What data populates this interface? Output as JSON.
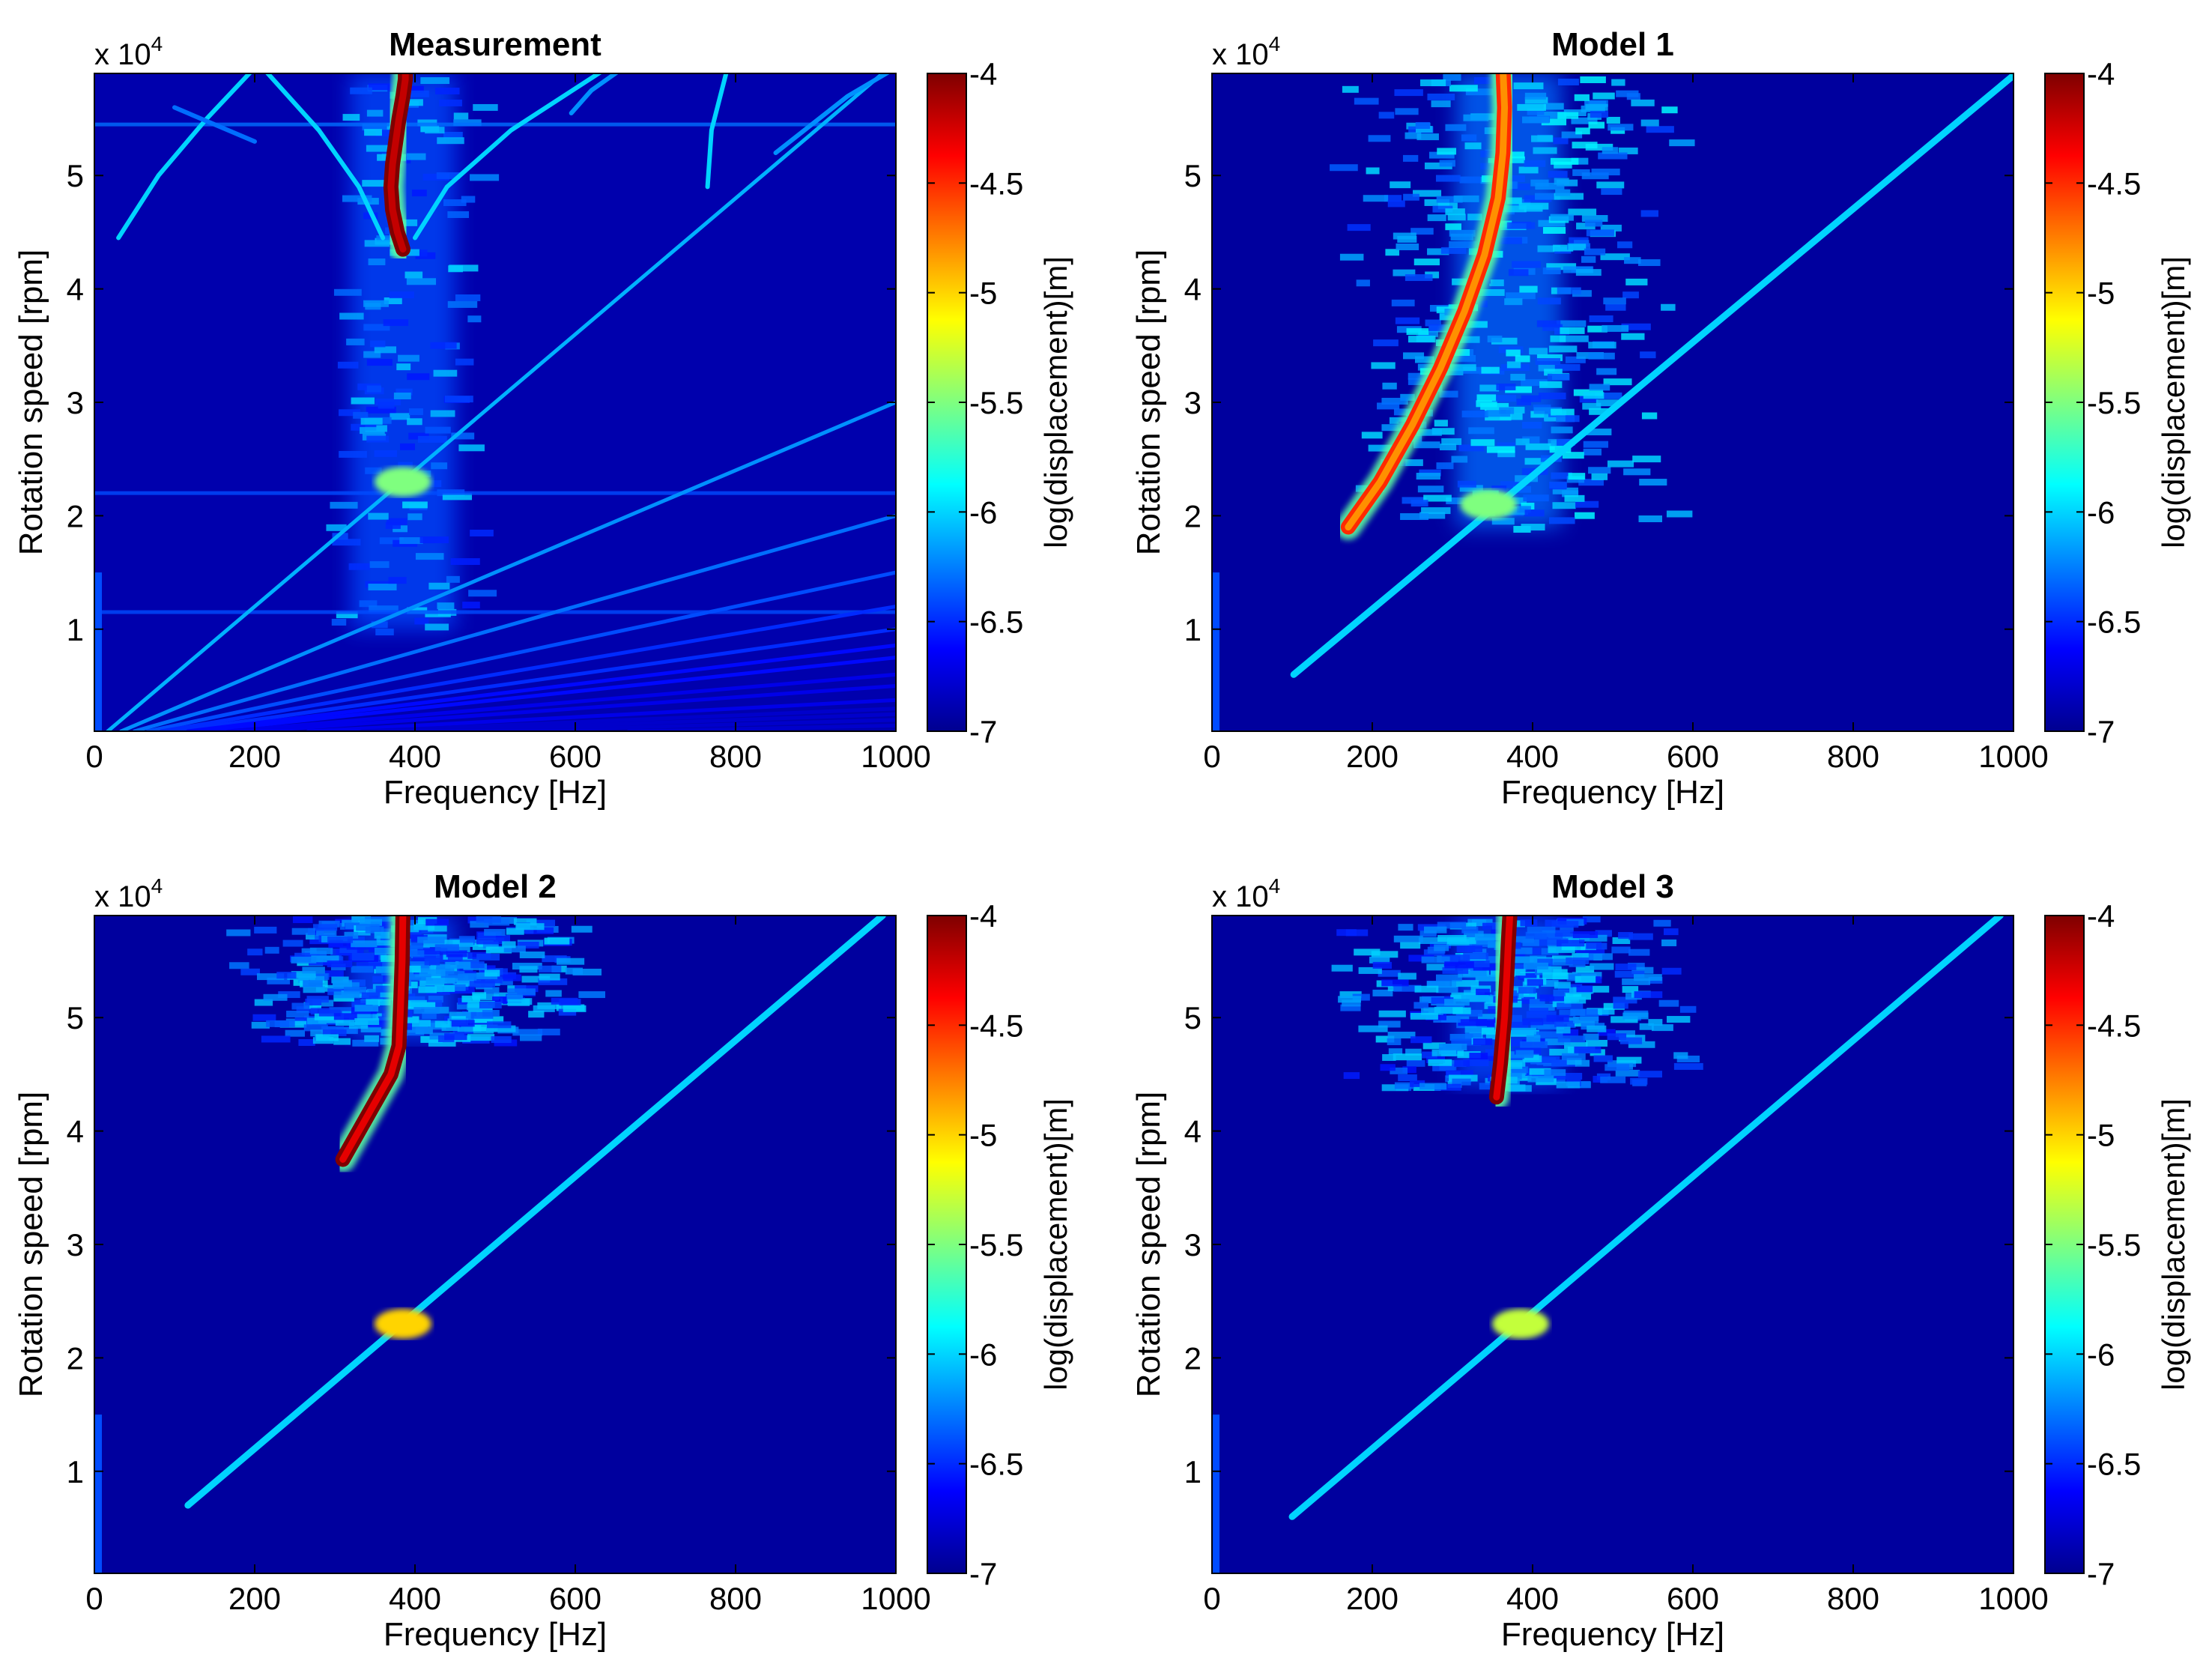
{
  "colors": {
    "background": "#ffffff",
    "plot_bg": "#00008f",
    "colormap": [
      "#00008f",
      "#0000ff",
      "#007fff",
      "#00ffff",
      "#7fff7f",
      "#ffff00",
      "#ff7f00",
      "#ff0000",
      "#7f0000"
    ]
  },
  "chart_data": [
    {
      "type": "heatmap",
      "id": "measurement",
      "title": "Measurement",
      "xlabel": "Frequency [Hz]",
      "ylabel": "Rotation speed [rpm]",
      "y_multiplier": "x 10",
      "y_multiplier_exp": "4",
      "xlim": [
        0,
        1000
      ],
      "ylim": [
        0.1,
        5.9
      ],
      "xticks": [
        0,
        200,
        400,
        600,
        800,
        1000
      ],
      "yticks": [
        1,
        2,
        3,
        4,
        5
      ],
      "colorbar": {
        "label": "log(displacement)[m]",
        "range": [
          -7,
          -4
        ],
        "ticks": [
          -4,
          -4.5,
          -5,
          -5.5,
          -6,
          -6.5,
          -7
        ]
      },
      "background_level": -6.9,
      "orders": [
        {
          "name": "1x",
          "hz_per_1e4rpm": 166.7,
          "level": -6.1
        },
        {
          "name": "2x",
          "hz_per_1e4rpm": 333.3,
          "level": -6.2
        },
        {
          "name": "3x",
          "hz_per_1e4rpm": 500,
          "level": -6.3
        },
        {
          "name": "4x",
          "hz_per_1e4rpm": 666.7,
          "level": -6.4
        },
        {
          "name": "5x",
          "hz_per_1e4rpm": 833.3,
          "level": -6.5
        },
        {
          "name": "6x",
          "hz_per_1e4rpm": 1000,
          "level": -6.5
        },
        {
          "name": "7x",
          "hz_per_1e4rpm": 1166.7,
          "level": -6.6
        },
        {
          "name": "8x",
          "hz_per_1e4rpm": 1333.3,
          "level": -6.6
        },
        {
          "name": "10x",
          "hz_per_1e4rpm": 1666.7,
          "level": -6.7
        },
        {
          "name": "12x",
          "hz_per_1e4rpm": 2000,
          "level": -6.7
        },
        {
          "name": "16x",
          "hz_per_1e4rpm": 2666.7,
          "level": -6.7
        },
        {
          "name": "20x",
          "hz_per_1e4rpm": 3333.3,
          "level": -6.8
        },
        {
          "name": "24x",
          "hz_per_1e4rpm": 4000,
          "level": -6.8
        },
        {
          "name": "30x",
          "hz_per_1e4rpm": 5000,
          "level": -6.8
        },
        {
          "name": "40x",
          "hz_per_1e4rpm": 6666.7,
          "level": -6.8
        }
      ],
      "resonance": {
        "x": [
          385,
          378,
          372,
          370,
          372,
          376,
          380,
          385,
          388,
          388
        ],
        "y": [
          4.35,
          4.5,
          4.7,
          4.9,
          5.1,
          5.3,
          5.5,
          5.7,
          5.85,
          5.95
        ],
        "level": -4.2,
        "band_center": 385,
        "band_level": -6.4
      },
      "crossing": {
        "x": 385,
        "y": 2.3,
        "level": -5.5
      },
      "branches": [
        {
          "x": [
            30,
            80,
            140,
            200
          ],
          "y": [
            4.45,
            5.0,
            5.5,
            5.95
          ],
          "level": -6.0
        },
        {
          "x": [
            360,
            330,
            280,
            210
          ],
          "y": [
            4.45,
            4.9,
            5.4,
            5.95
          ],
          "level": -6.0
        },
        {
          "x": [
            400,
            440,
            520,
            640
          ],
          "y": [
            4.45,
            4.9,
            5.4,
            5.95
          ],
          "level": -6.0
        },
        {
          "x": [
            595,
            620,
            660
          ],
          "y": [
            5.55,
            5.75,
            5.95
          ],
          "level": -6.2
        },
        {
          "x": [
            765,
            770,
            790
          ],
          "y": [
            4.9,
            5.4,
            5.95
          ],
          "level": -6.0
        },
        {
          "x": [
            850,
            940,
            1000
          ],
          "y": [
            5.2,
            5.7,
            5.95
          ],
          "level": -6.2
        },
        {
          "x": [
            100,
            200
          ],
          "y": [
            5.6,
            5.3
          ],
          "level": -6.3
        }
      ],
      "horizontal_lines": [
        {
          "y": 5.45,
          "level": -6.3
        },
        {
          "y": 2.2,
          "level": -6.4
        },
        {
          "y": 1.15,
          "level": -6.4
        }
      ]
    },
    {
      "type": "heatmap",
      "id": "model1",
      "title": "Model 1",
      "xlabel": "Frequency [Hz]",
      "ylabel": "Rotation speed [rpm]",
      "y_multiplier": "x 10",
      "y_multiplier_exp": "4",
      "xlim": [
        0,
        1000
      ],
      "ylim": [
        0.1,
        5.9
      ],
      "xticks": [
        0,
        200,
        400,
        600,
        800,
        1000
      ],
      "yticks": [
        1,
        2,
        3,
        4,
        5
      ],
      "colorbar": {
        "label": "log(displacement)[m]",
        "range": [
          -7,
          -4
        ],
        "ticks": [
          -4,
          -4.5,
          -5,
          -5.5,
          -6,
          -6.5,
          -7
        ]
      },
      "background_level": -6.95,
      "orders": [
        {
          "name": "1x",
          "hz_per_1e4rpm": 170,
          "level": -6.0,
          "y_start": 0.6
        }
      ],
      "resonance": {
        "x": [
          170,
          210,
          250,
          285,
          315,
          340,
          357,
          363,
          365,
          363
        ],
        "y": [
          1.9,
          2.3,
          2.8,
          3.3,
          3.8,
          4.3,
          4.8,
          5.2,
          5.6,
          5.95
        ],
        "level": -4.8,
        "band_center": 370,
        "band_level": -6.3,
        "noise_y_start": 1.9
      },
      "crossing": {
        "x": 345,
        "y": 2.1,
        "level": -5.5
      },
      "branches": [],
      "horizontal_lines": []
    },
    {
      "type": "heatmap",
      "id": "model2",
      "title": "Model 2",
      "xlabel": "Frequency [Hz]",
      "ylabel": "Rotation speed [rpm]",
      "y_multiplier": "x 10",
      "y_multiplier_exp": "4",
      "xlim": [
        0,
        1000
      ],
      "ylim": [
        0.1,
        5.9
      ],
      "xticks": [
        0,
        200,
        400,
        600,
        800,
        1000
      ],
      "yticks": [
        1,
        2,
        3,
        4,
        5
      ],
      "colorbar": {
        "label": "log(displacement)[m]",
        "range": [
          -7,
          -4
        ],
        "ticks": [
          -4,
          -4.5,
          -5,
          -5.5,
          -6,
          -6.5,
          -7
        ]
      },
      "background_level": -6.95,
      "orders": [
        {
          "name": "1x",
          "hz_per_1e4rpm": 166.7,
          "level": -6.0,
          "y_start": 0.7
        }
      ],
      "resonance": {
        "x": [
          310,
          330,
          350,
          370,
          380,
          382,
          384,
          385
        ],
        "y": [
          3.75,
          4.0,
          4.25,
          4.5,
          4.75,
          5.1,
          5.5,
          5.95
        ],
        "level": -4.3,
        "band_center": 385,
        "band_level": -6.4,
        "noise_y_start": 4.8
      },
      "crossing": {
        "x": 385,
        "y": 2.3,
        "level": -5.0
      },
      "branches": [],
      "horizontal_lines": []
    },
    {
      "type": "heatmap",
      "id": "model3",
      "title": "Model 3",
      "xlabel": "Frequency [Hz]",
      "ylabel": "Rotation speed [rpm]",
      "y_multiplier": "x 10",
      "y_multiplier_exp": "4",
      "xlim": [
        0,
        1000
      ],
      "ylim": [
        0.1,
        5.9
      ],
      "xticks": [
        0,
        200,
        400,
        600,
        800,
        1000
      ],
      "yticks": [
        1,
        2,
        3,
        4,
        5
      ],
      "colorbar": {
        "label": "log(displacement)[m]",
        "range": [
          -7,
          -4
        ],
        "ticks": [
          -4,
          -4.5,
          -5,
          -5.5,
          -6,
          -6.5,
          -7
        ]
      },
      "background_level": -6.95,
      "orders": [
        {
          "name": "1x",
          "hz_per_1e4rpm": 166.7,
          "level": -6.0,
          "y_start": 0.6
        }
      ],
      "resonance": {
        "x": [
          355,
          360,
          365,
          368,
          370,
          372
        ],
        "y": [
          4.3,
          4.6,
          5.0,
          5.4,
          5.7,
          5.95
        ],
        "level": -4.3,
        "band_center": 370,
        "band_level": -6.4,
        "noise_y_start": 4.4
      },
      "crossing": {
        "x": 385,
        "y": 2.3,
        "level": -5.3
      },
      "branches": [],
      "horizontal_lines": []
    }
  ]
}
